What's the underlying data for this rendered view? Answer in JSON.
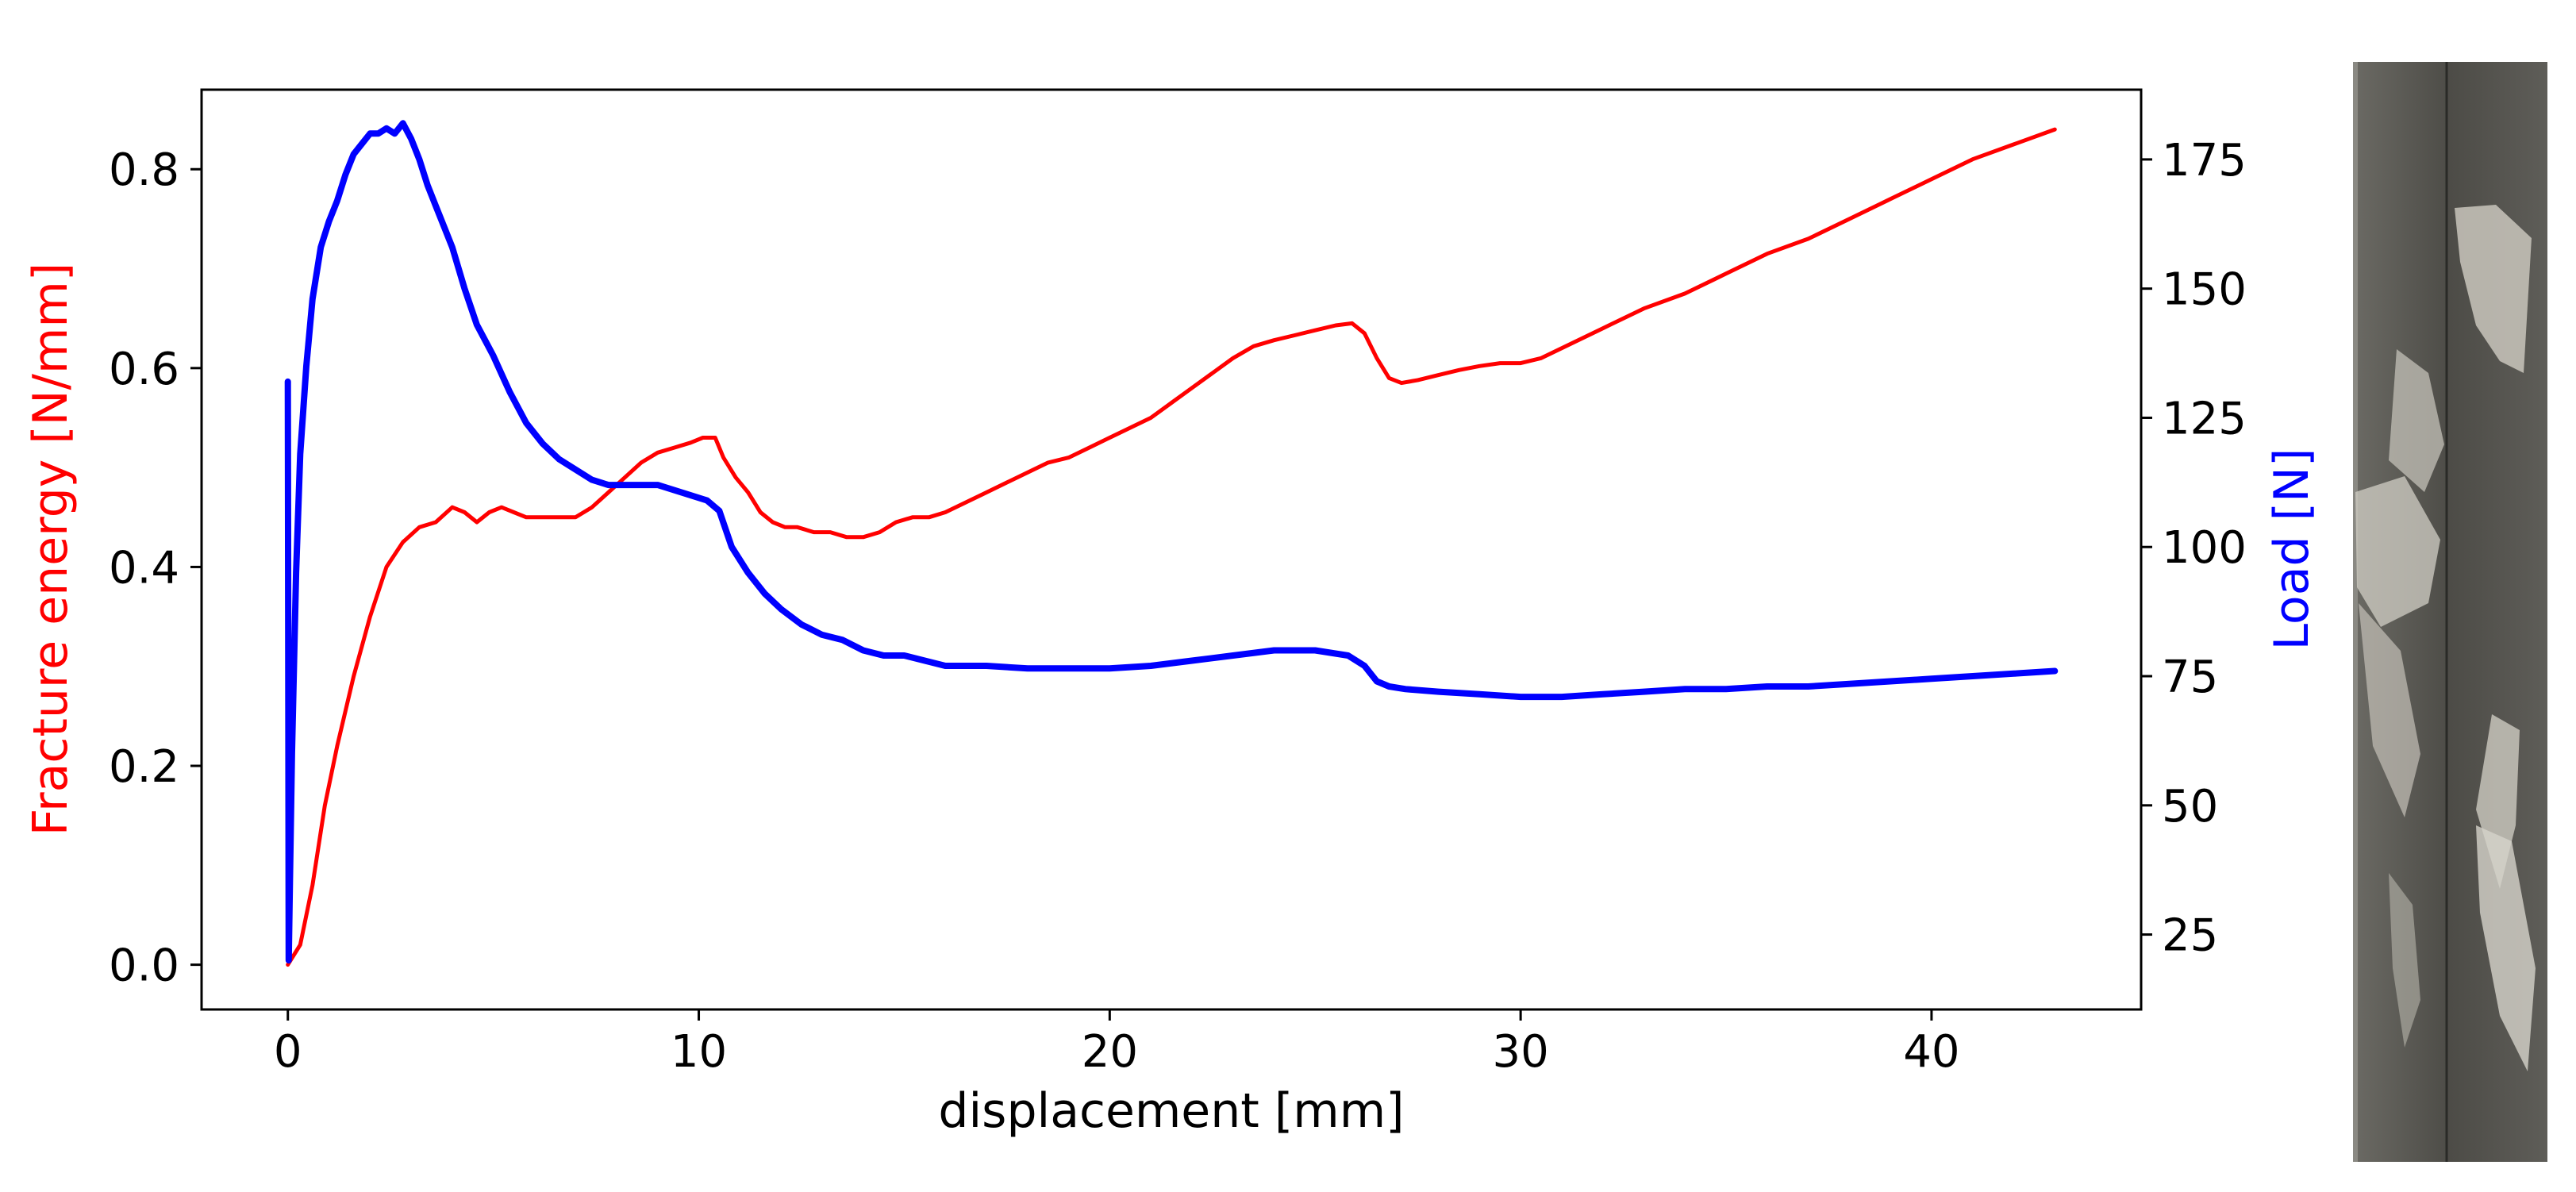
{
  "chart_data": {
    "type": "line",
    "title": "",
    "xlabel": "displacement [mm]",
    "ylabel_left": "Fracture energy [N/mm]",
    "ylabel_right": "Load [N]",
    "xlim": [
      -2.1,
      45.1
    ],
    "ylim_left": [
      -0.045,
      0.88
    ],
    "ylim_right": [
      10.5,
      188.5
    ],
    "x_ticks": [
      0,
      10,
      20,
      30,
      40
    ],
    "y_left_ticks": [
      0.0,
      0.2,
      0.4,
      0.6,
      0.8
    ],
    "y_right_ticks": [
      25,
      50,
      75,
      100,
      125,
      150,
      175
    ],
    "grid": false,
    "legend": "none",
    "colors": {
      "fracture_energy": "#ff0000",
      "load": "#0000ff",
      "left_axis_label": "#ff0000",
      "right_axis_label": "#0000ff"
    },
    "series": [
      {
        "axis": "left",
        "color": "#ff0000",
        "x": [
          0,
          0.3,
          0.6,
          0.9,
          1.2,
          1.6,
          2.0,
          2.4,
          2.8,
          3.2,
          3.6,
          4.0,
          4.3,
          4.6,
          4.9,
          5.2,
          5.5,
          5.8,
          6.2,
          6.6,
          7.0,
          7.4,
          7.8,
          8.2,
          8.6,
          9.0,
          9.4,
          9.8,
          10.1,
          10.4,
          10.6,
          10.9,
          11.2,
          11.5,
          11.8,
          12.1,
          12.4,
          12.8,
          13.2,
          13.6,
          14.0,
          14.4,
          14.8,
          15.2,
          15.6,
          16.0,
          16.5,
          17.0,
          17.5,
          18.0,
          18.5,
          19.0,
          19.5,
          20.0,
          20.5,
          21.0,
          21.5,
          22.0,
          22.5,
          23.0,
          23.5,
          24.0,
          24.5,
          25.0,
          25.5,
          25.9,
          26.2,
          26.5,
          26.8,
          27.1,
          27.5,
          28.0,
          28.5,
          29.0,
          29.5,
          30.0,
          30.5,
          31.0,
          31.5,
          32.0,
          33.0,
          34.0,
          35.0,
          36.0,
          37.0,
          38.0,
          39.0,
          40.0,
          41.0,
          42.0,
          43.0
        ],
        "y": [
          0.0,
          0.02,
          0.08,
          0.16,
          0.22,
          0.29,
          0.35,
          0.4,
          0.425,
          0.44,
          0.445,
          0.46,
          0.455,
          0.445,
          0.455,
          0.46,
          0.455,
          0.45,
          0.45,
          0.45,
          0.45,
          0.46,
          0.475,
          0.49,
          0.505,
          0.515,
          0.52,
          0.525,
          0.53,
          0.53,
          0.51,
          0.49,
          0.475,
          0.455,
          0.445,
          0.44,
          0.44,
          0.435,
          0.435,
          0.43,
          0.43,
          0.435,
          0.445,
          0.45,
          0.45,
          0.455,
          0.465,
          0.475,
          0.485,
          0.495,
          0.505,
          0.51,
          0.52,
          0.53,
          0.54,
          0.55,
          0.565,
          0.58,
          0.595,
          0.61,
          0.622,
          0.628,
          0.633,
          0.638,
          0.643,
          0.645,
          0.635,
          0.61,
          0.59,
          0.585,
          0.588,
          0.593,
          0.598,
          0.602,
          0.605,
          0.605,
          0.61,
          0.62,
          0.63,
          0.64,
          0.66,
          0.675,
          0.695,
          0.715,
          0.73,
          0.75,
          0.77,
          0.79,
          0.81,
          0.825,
          0.84
        ]
      },
      {
        "axis": "right",
        "color": "#0000ff",
        "x": [
          0,
          0.02,
          0.05,
          0.1,
          0.2,
          0.3,
          0.45,
          0.6,
          0.8,
          1.0,
          1.2,
          1.4,
          1.6,
          1.8,
          2.0,
          2.2,
          2.4,
          2.6,
          2.8,
          3.0,
          3.2,
          3.4,
          3.6,
          3.8,
          4.0,
          4.3,
          4.6,
          5.0,
          5.4,
          5.8,
          6.2,
          6.6,
          7.0,
          7.4,
          7.8,
          8.2,
          8.6,
          9.0,
          9.4,
          9.8,
          10.2,
          10.5,
          10.8,
          11.2,
          11.6,
          12.0,
          12.5,
          13.0,
          13.5,
          14.0,
          14.5,
          15.0,
          15.5,
          16.0,
          17.0,
          18.0,
          19.0,
          20.0,
          21.0,
          22.0,
          23.0,
          24.0,
          25.0,
          25.8,
          26.2,
          26.5,
          26.8,
          27.2,
          28.0,
          29.0,
          30.0,
          31.0,
          32.0,
          33.0,
          34.0,
          35.0,
          36.0,
          37.0,
          38.0,
          39.0,
          40.0,
          41.0,
          42.0,
          43.0
        ],
        "y": [
          132,
          20,
          35,
          60,
          95,
          118,
          135,
          148,
          158,
          163,
          167,
          172,
          176,
          178,
          180,
          180,
          181,
          180,
          182,
          179,
          175,
          170,
          166,
          162,
          158,
          150,
          143,
          137,
          130,
          124,
          120,
          117,
          115,
          113,
          112,
          112,
          112,
          112,
          111,
          110,
          109,
          107,
          100,
          95,
          91,
          88,
          85,
          83,
          82,
          80,
          79,
          79,
          78,
          77,
          77,
          76.5,
          76.5,
          76.5,
          77,
          78,
          79,
          80,
          80,
          79,
          77,
          74,
          73,
          72.5,
          72,
          71.5,
          71,
          71,
          71.5,
          72,
          72.5,
          72.5,
          73,
          73,
          73.5,
          74,
          74.5,
          75,
          75.5,
          76
        ]
      }
    ]
  }
}
